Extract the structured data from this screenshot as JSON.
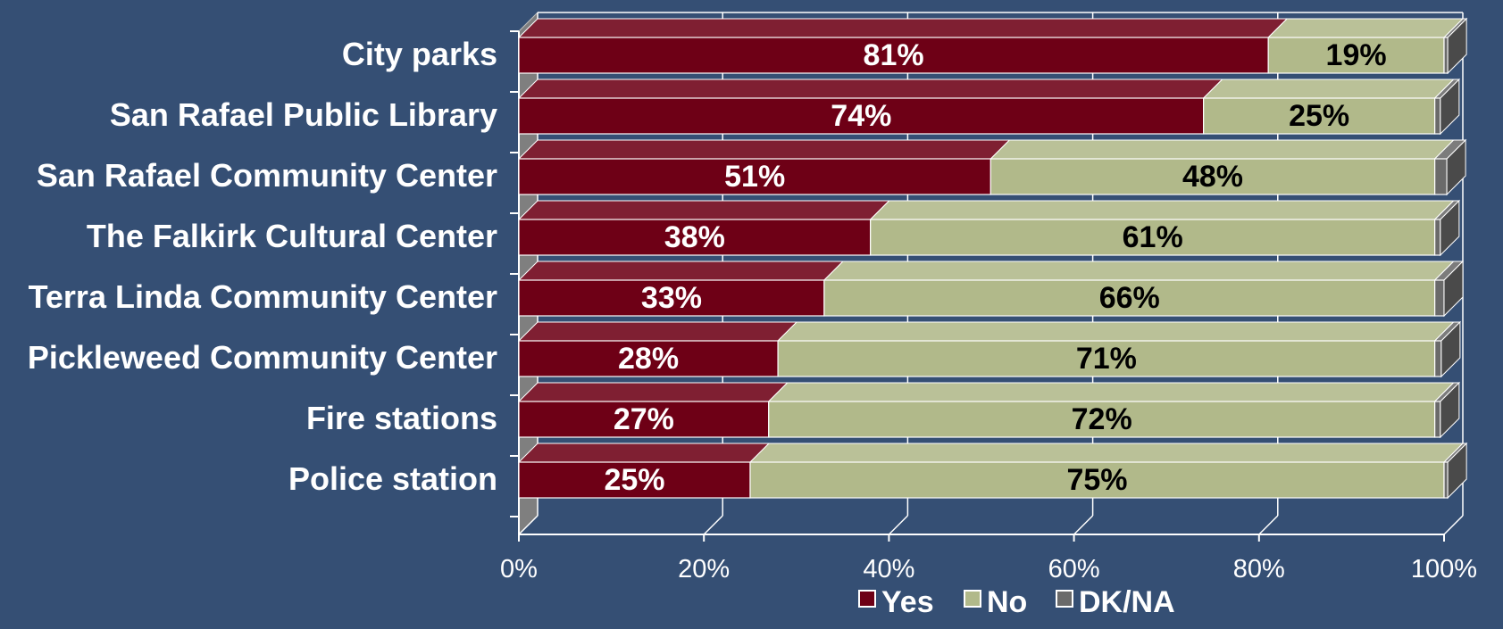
{
  "chart_data": {
    "type": "bar",
    "stacked": true,
    "orientation": "horizontal",
    "three_d": true,
    "categories": [
      "City parks",
      "San Rafael Public Library",
      "San Rafael Community Center",
      "The Falkirk Cultural Center",
      "Terra Linda Community Center",
      "Pickleweed Community Center",
      "Fire stations",
      "Police station"
    ],
    "series": [
      {
        "name": "Yes",
        "color": "#6e0016",
        "label_color": "#ffffff",
        "values": [
          81,
          74,
          51,
          38,
          33,
          28,
          27,
          25
        ],
        "labels": [
          "81%",
          "74%",
          "51%",
          "38%",
          "33%",
          "28%",
          "27%",
          "25%"
        ]
      },
      {
        "name": "No",
        "color": "#b1b98a",
        "label_color": "#000000",
        "values": [
          19,
          25,
          48,
          61,
          66,
          71,
          72,
          75
        ],
        "labels": [
          "19%",
          "25%",
          "48%",
          "61%",
          "66%",
          "71%",
          "72%",
          "75%"
        ]
      },
      {
        "name": "DK/NA",
        "color": "#6a6a6a",
        "values": [
          0.4,
          0.6,
          1.3,
          0.6,
          1.0,
          0.7,
          0.6,
          0.4
        ]
      }
    ],
    "xlim": [
      0,
      100
    ],
    "xticks": [
      "0%",
      "20%",
      "40%",
      "60%",
      "80%",
      "100%"
    ],
    "grid": true,
    "legend": "bottom-center",
    "title": "",
    "xlabel": "",
    "ylabel": ""
  },
  "colors": {
    "background": "#354f74",
    "text": "#ffffff",
    "gridline": "#ffffff",
    "side_wall": "#7f7f7f"
  }
}
